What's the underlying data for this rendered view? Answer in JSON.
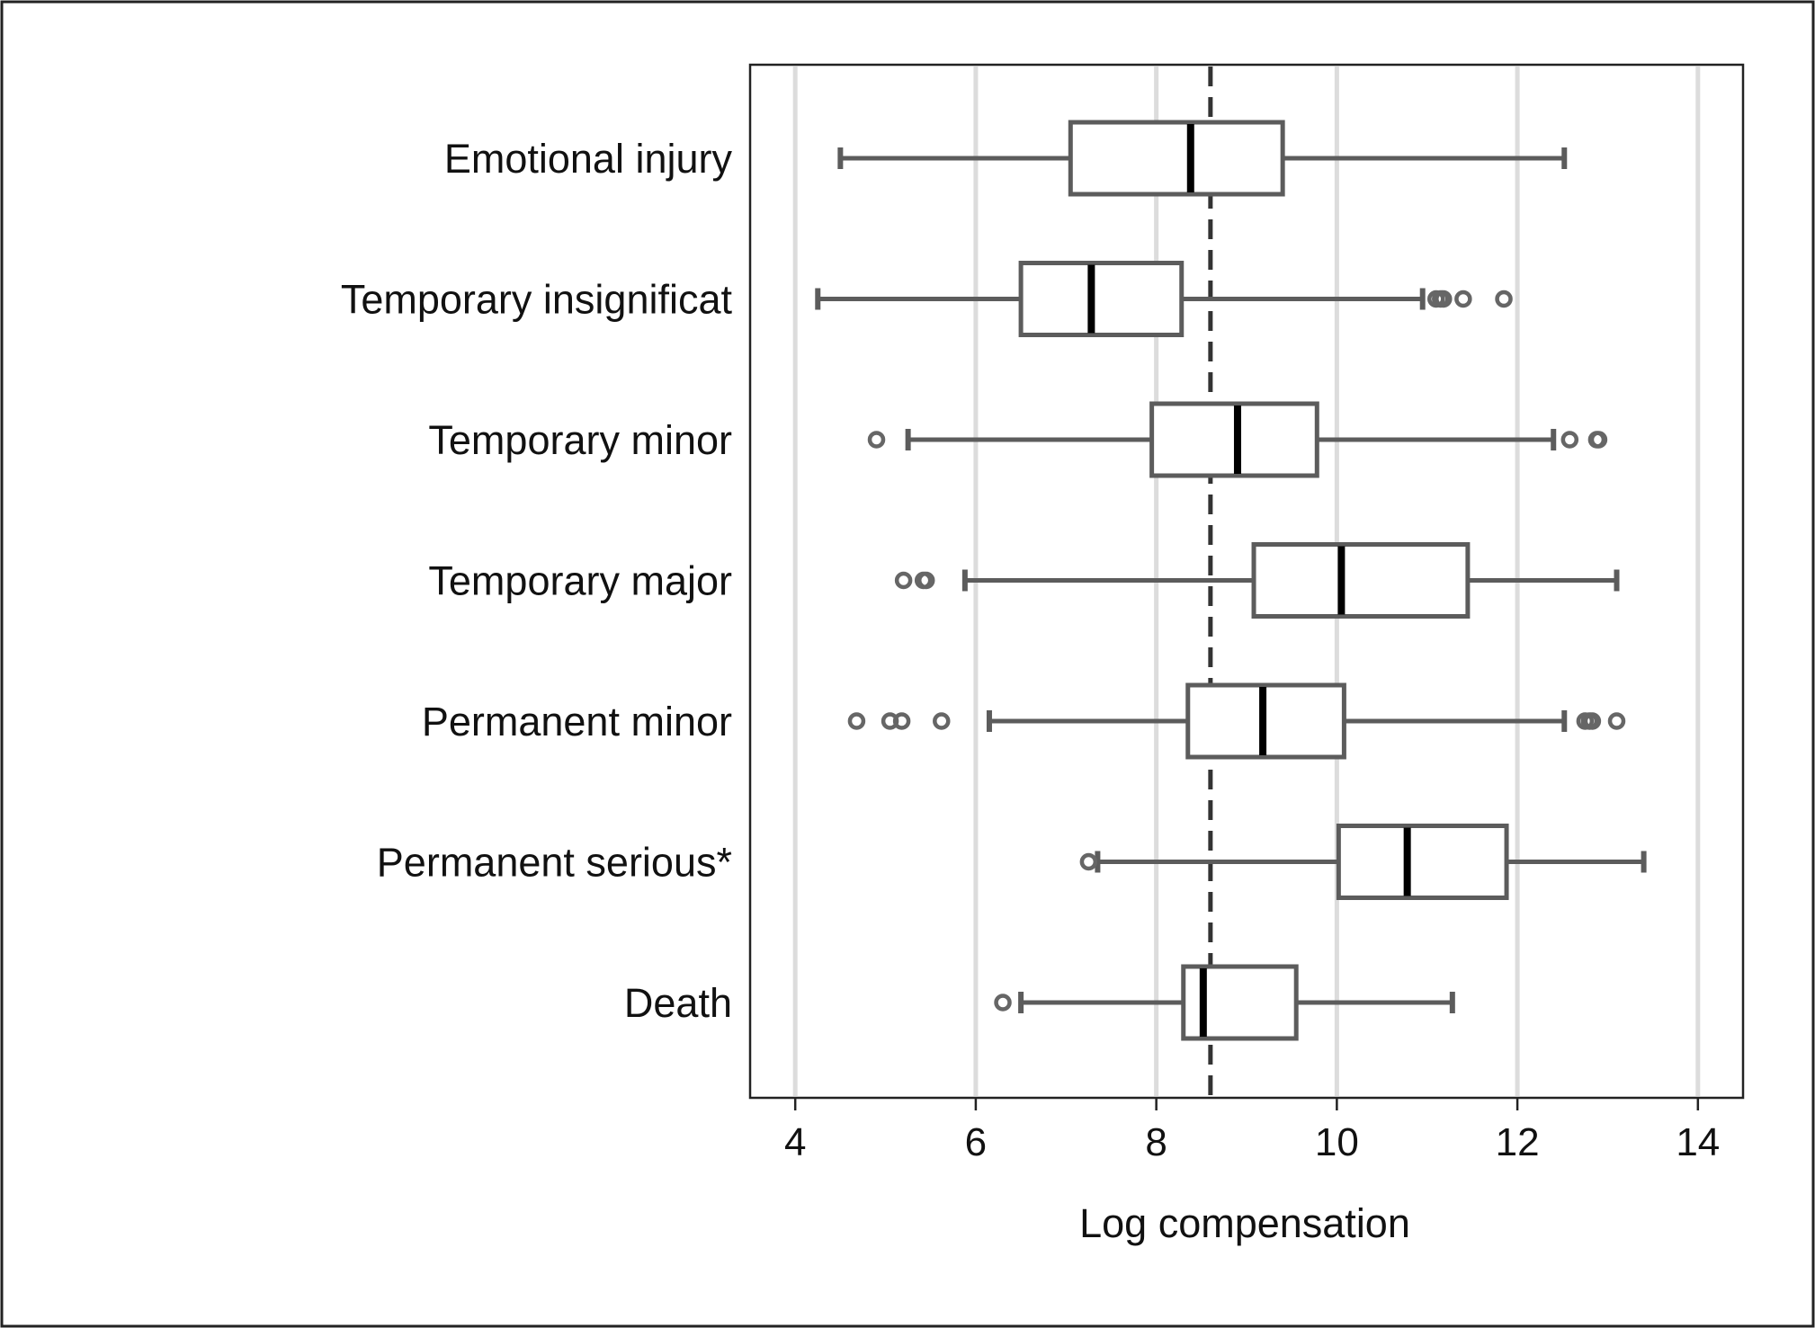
{
  "chart_data": {
    "type": "boxplot",
    "orientation": "horizontal",
    "title": "",
    "xlabel": "Log compensation",
    "ylabel": "",
    "xlim": [
      3.5,
      14.5
    ],
    "xticks": [
      4,
      6,
      8,
      10,
      12,
      14
    ],
    "grid": "vertical",
    "reference_line": {
      "x": 8.6,
      "style": "dashed"
    },
    "categories": [
      "Emotional injury",
      "Temporary insignificat",
      "Temporary minor",
      "Temporary major",
      "Permanent minor",
      "Permanent serious*",
      "Death"
    ],
    "series": [
      {
        "category": "Emotional injury",
        "whisker_low": 4.5,
        "q1": 7.05,
        "median": 8.38,
        "q3": 9.4,
        "whisker_high": 12.52,
        "outliers": []
      },
      {
        "category": "Temporary insignificat",
        "whisker_low": 4.25,
        "q1": 6.5,
        "median": 7.28,
        "q3": 8.28,
        "whisker_high": 10.95,
        "outliers": [
          11.1,
          11.15,
          11.18,
          11.4,
          11.85
        ]
      },
      {
        "category": "Temporary minor",
        "whisker_low": 5.25,
        "q1": 7.95,
        "median": 8.9,
        "q3": 9.78,
        "whisker_high": 12.4,
        "outliers": [
          4.9,
          12.58,
          12.88,
          12.9
        ]
      },
      {
        "category": "Temporary major",
        "whisker_low": 5.88,
        "q1": 9.08,
        "median": 10.05,
        "q3": 11.45,
        "whisker_high": 13.1,
        "outliers": [
          5.2,
          5.42,
          5.45
        ]
      },
      {
        "category": "Permanent minor",
        "whisker_low": 6.15,
        "q1": 8.35,
        "median": 9.18,
        "q3": 10.08,
        "whisker_high": 12.52,
        "outliers": [
          4.68,
          5.05,
          5.18,
          5.62,
          12.75,
          12.8,
          12.83,
          13.1
        ]
      },
      {
        "category": "Permanent serious*",
        "whisker_low": 7.35,
        "q1": 10.02,
        "median": 10.78,
        "q3": 11.88,
        "whisker_high": 13.4,
        "outliers": [
          7.25
        ]
      },
      {
        "category": "Death",
        "whisker_low": 6.5,
        "q1": 8.3,
        "median": 8.52,
        "q3": 9.55,
        "whisker_high": 11.28,
        "outliers": [
          6.3
        ]
      }
    ]
  }
}
